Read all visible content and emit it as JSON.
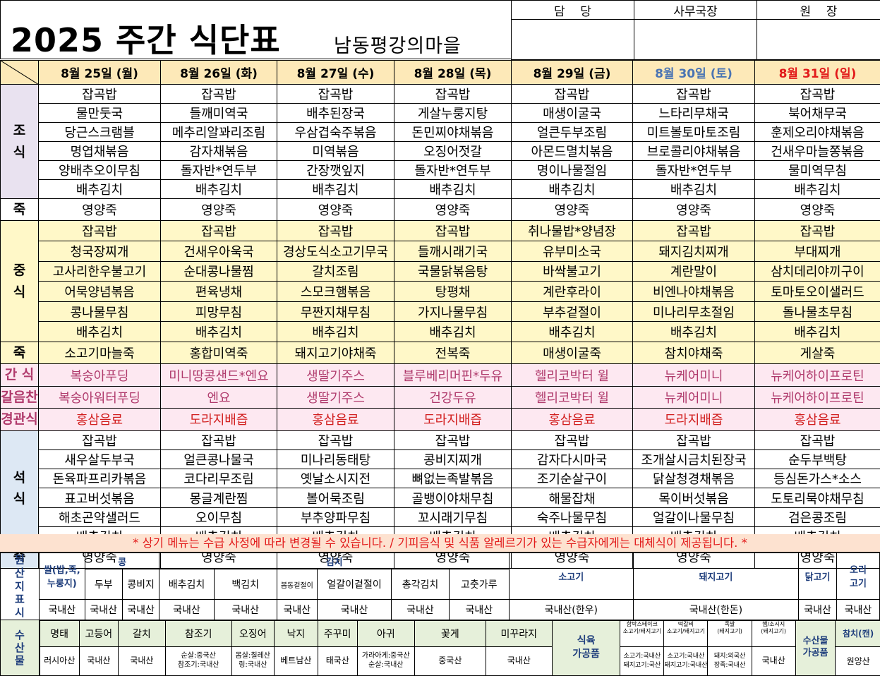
{
  "title": "2025 주간 식단표",
  "subtitle": "남동평강의마을",
  "approval": [
    "담    당",
    "사무국장",
    "원    장"
  ],
  "days": [
    {
      "label": "8월 25일 (월)",
      "kind": "weekday"
    },
    {
      "label": "8월 26일 (화)",
      "kind": "weekday"
    },
    {
      "label": "8월 27일 (수)",
      "kind": "weekday"
    },
    {
      "label": "8월 28일 (목)",
      "kind": "weekday"
    },
    {
      "label": "8월 29일 (금)",
      "kind": "weekday"
    },
    {
      "label": "8월 30일 (토)",
      "kind": "sat"
    },
    {
      "label": "8월 31일 (일)",
      "kind": "sun"
    }
  ],
  "sections": {
    "breakfast": "조\n식",
    "lunch": "중\n식",
    "dinner": "석\n식",
    "porridge": "죽",
    "snack": "간 식",
    "chewable": "갈음찬",
    "tube": "경관식"
  },
  "breakfast": [
    [
      "잡곡밥",
      "잡곡밥",
      "잡곡밥",
      "잡곡밥",
      "잡곡밥",
      "잡곡밥",
      "잡곡밥"
    ],
    [
      "물만둣국",
      "들깨미역국",
      "배추된장국",
      "게살누룽지탕",
      "매생이굴국",
      "느타리무채국",
      "북어채무국"
    ],
    [
      "당근스크램블",
      "메추리알꽈리조림",
      "우삼겹숙주볶음",
      "돈민찌야채볶음",
      "얼큰두부조림",
      "미트볼토마토조림",
      "훈제오리야채볶음"
    ],
    [
      "명엽채볶음",
      "감자채볶음",
      "미역볶음",
      "오징어젓갈",
      "아몬드멸치볶음",
      "브로콜리야채볶음",
      "건새우마늘쫑볶음"
    ],
    [
      "양배추오이무침",
      "돌자반*연두부",
      "간장깻잎지",
      "돌자반*연두부",
      "명이나물절임",
      "돌자반*연두부",
      "물미역무침"
    ],
    [
      "배추김치",
      "배추김치",
      "배추김치",
      "배추김치",
      "배추김치",
      "배추김치",
      "배추김치"
    ]
  ],
  "breakfast_porridge": [
    "영양죽",
    "영양죽",
    "영양죽",
    "영양죽",
    "영양죽",
    "영양죽",
    "영양죽"
  ],
  "lunch": [
    [
      "잡곡밥",
      "잡곡밥",
      "잡곡밥",
      "잡곡밥",
      "취나물밥*양념장",
      "잡곡밥",
      "잡곡밥"
    ],
    [
      "청국장찌개",
      "건새우아욱국",
      "경상도식소고기무국",
      "들깨시래기국",
      "유부미소국",
      "돼지김치찌개",
      "부대찌개"
    ],
    [
      "고사리한우불고기",
      "순대콩나물찜",
      "갈치조림",
      "국물닭볶음탕",
      "바싹불고기",
      "계란말이",
      "삼치데리야끼구이"
    ],
    [
      "어묵양념볶음",
      "편육냉채",
      "스모크햄볶음",
      "탕평채",
      "계란후라이",
      "비엔나야채볶음",
      "토마토오이샐러드"
    ],
    [
      "콩나물무침",
      "피망무침",
      "무짠지채무침",
      "가지나물무침",
      "부추겉절이",
      "미나리무초절임",
      "돌나물초무침"
    ],
    [
      "배추김치",
      "배추김치",
      "배추김치",
      "배추김치",
      "배추김치",
      "배추김치",
      "배추김치"
    ]
  ],
  "lunch_porridge": [
    "소고기마늘죽",
    "홍합미역죽",
    "돼지고기야채죽",
    "전복죽",
    "매생이굴죽",
    "참치야채죽",
    "게살죽"
  ],
  "snack": [
    "복숭아푸딩",
    "미니땅콩샌드*엔요",
    "생딸기주스",
    "블루베리머핀*두유",
    "헬리코박터 윌",
    "뉴케어미니",
    "뉴케어하이프로틴"
  ],
  "chewable": [
    "복숭아워터푸딩",
    "엔요",
    "생딸기주스",
    "건강두유",
    "헬리코박터 윌",
    "뉴케어미니",
    "뉴케어하이프로틴"
  ],
  "tube": [
    "홍삼음료",
    "도라지배즙",
    "홍삼음료",
    "도라지배즙",
    "홍삼음료",
    "도라지배즙",
    "홍삼음료"
  ],
  "dinner": [
    [
      "잡곡밥",
      "잡곡밥",
      "잡곡밥",
      "잡곡밥",
      "잡곡밥",
      "잡곡밥",
      "잡곡밥"
    ],
    [
      "새우살두부국",
      "얼큰콩나물국",
      "미나리동태탕",
      "콩비지찌개",
      "감자다시마국",
      "조개살시금치된장국",
      "순두부백탕"
    ],
    [
      "돈육파프리카볶음",
      "코다리무조림",
      "옛날소시지전",
      "뼈없는족발볶음",
      "조기순살구이",
      "닭살청경채볶음",
      "등심돈가스*소스"
    ],
    [
      "표고버섯볶음",
      "몽글계란찜",
      "볼어묵조림",
      "골뱅이야채무침",
      "해물잡채",
      "목이버섯볶음",
      "도토리묵야채무침"
    ],
    [
      "해초곤약샐러드",
      "오이무침",
      "부추양파무침",
      "꼬시래기무침",
      "숙주나물무침",
      "얼갈이나물무침",
      "검은콩조림"
    ],
    [
      "배추김치",
      "배추김치",
      "배추김치",
      "배추김치",
      "배추김치",
      "배추김치",
      "배추김치"
    ]
  ],
  "dinner_porridge": [
    "영양죽",
    "영양죽",
    "영양죽",
    "영양죽",
    "영양죽",
    "영양죽",
    "영양죽"
  ],
  "notice": "* 상기 메뉴는 수급 사정에 따라 변경될 수 있습니다. / 기피음식 및 식품 알레르기가 있는 수급자에게는 대체식이 제공됩니다. *",
  "origin": {
    "side_label": "원\n산\n지\n표\n시",
    "rice_label": "쌀(밥,죽,\n누룽지)",
    "bean_label": "콩",
    "kimchi_label": "김치",
    "tofu": "두부",
    "bean_curd_residue": "콩비지",
    "kimchi_items": [
      "배추김치",
      "백김치",
      "봄동겉절이",
      "얼갈이겉절이",
      "총각김치",
      "고춧가루"
    ],
    "beef": "소고기",
    "pork": "돼지고기",
    "chicken": "닭고기",
    "duck": "오리\n고기",
    "domestic": "국내산",
    "beef_origin": "국내산(한우)",
    "pork_origin": "국내산(한돈)",
    "seafood_label": "수\n산\n물",
    "seafood_items": [
      "명태",
      "고등어",
      "갈치",
      "참조기",
      "오징어",
      "낙지",
      "주꾸미",
      "아귀",
      "꽃게",
      "미꾸라지"
    ],
    "seafood_origins": [
      "러시아산",
      "국내산",
      "국내산",
      "순살:중국산\n참조기:국내산",
      "몸살:칠레산\n링:국내산",
      "베트남산",
      "태국산",
      "가라아게:중국산\n순살:국내산",
      "중국산",
      "국내산"
    ],
    "processed_meat_label": "식육\n가공품",
    "processed_items": [
      "함박스테이크",
      "떡갈비",
      "족발",
      "햄/소시지"
    ],
    "processed_origins": [
      "소고기:국내산\n돼지고기:국산",
      "소고기:국내산\n돼지고기:국내산",
      "돼지:외국산\n장족:국내산",
      "국내산"
    ],
    "processed_items_note": [
      "소고기/돼지고기",
      "소고기/돼지고기",
      "(돼지고기)",
      "(돼지고기)"
    ],
    "seafood_processed_label": "수산물\n가공품",
    "tuna_label": "참치(캔)",
    "tuna_origin": "원양산"
  }
}
